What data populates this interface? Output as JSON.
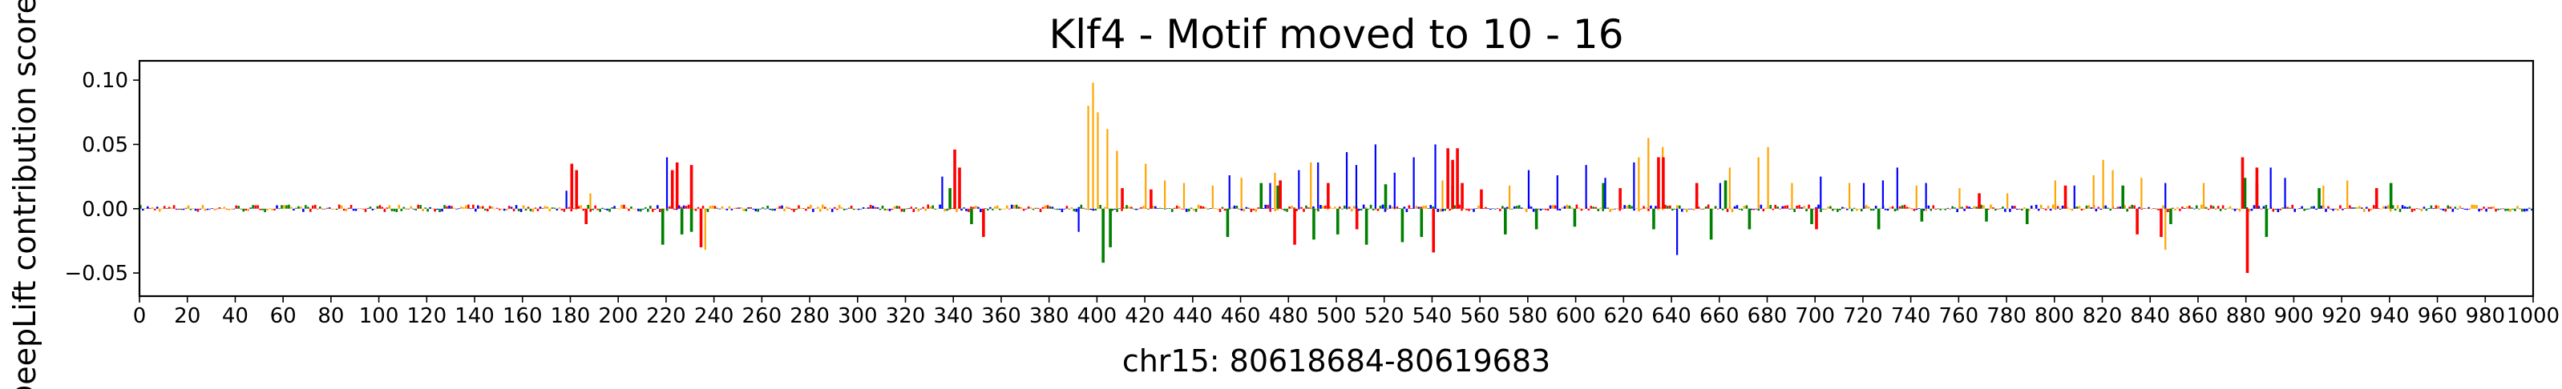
{
  "chart_data": {
    "type": "bar",
    "title": "Klf4 - Motif moved to 10 - 16",
    "xlabel": "chr15: 80618684-80619683",
    "ylabel": "DeepLift contribution score",
    "xlim": [
      0,
      1000
    ],
    "ylim": [
      -0.068,
      0.115
    ],
    "xticks": [
      0,
      20,
      40,
      60,
      80,
      100,
      120,
      140,
      160,
      180,
      200,
      220,
      240,
      260,
      280,
      300,
      320,
      340,
      360,
      380,
      400,
      420,
      440,
      460,
      480,
      500,
      520,
      540,
      560,
      580,
      600,
      620,
      640,
      660,
      680,
      700,
      720,
      740,
      760,
      780,
      800,
      820,
      840,
      860,
      880,
      900,
      920,
      940,
      960,
      980,
      1000
    ],
    "xtick_labels": [
      "0",
      "20",
      "40",
      "60",
      "80",
      "100",
      "120",
      "140",
      "160",
      "180",
      "200",
      "220",
      "240",
      "260",
      "280",
      "300",
      "320",
      "340",
      "360",
      "380",
      "400",
      "420",
      "440",
      "460",
      "480",
      "500",
      "520",
      "540",
      "560",
      "580",
      "600",
      "620",
      "640",
      "660",
      "680",
      "700",
      "720",
      "740",
      "760",
      "780",
      "800",
      "820",
      "840",
      "860",
      "880",
      "900",
      "920",
      "940",
      "960",
      "980",
      "1000"
    ],
    "yticks": [
      -0.05,
      0.0,
      0.05,
      0.1
    ],
    "ytick_labels": [
      "−0.05",
      "0.00",
      "0.05",
      "0.10"
    ],
    "grid": false,
    "legend": "none",
    "base_colors": {
      "A": "#008000",
      "C": "#0000ff",
      "G": "#ffa500",
      "T": "#ff0000"
    },
    "series": [
      {
        "base": "A",
        "x": [
          218,
          226,
          230,
          338,
          347,
          402,
          405,
          454,
          468,
          475,
          490,
          500,
          512,
          520,
          527,
          535,
          548,
          570,
          583,
          599,
          611,
          632,
          656,
          662,
          672,
          698,
          726,
          744,
          771,
          788,
          828,
          848,
          879,
          884,
          888,
          910,
          940
        ],
        "values": [
          -0.028,
          -0.02,
          -0.018,
          0.016,
          -0.012,
          -0.042,
          -0.03,
          -0.022,
          0.02,
          0.018,
          -0.024,
          -0.02,
          -0.028,
          0.019,
          -0.026,
          -0.022,
          0.018,
          -0.02,
          -0.016,
          -0.014,
          0.02,
          -0.016,
          -0.024,
          0.022,
          -0.016,
          -0.012,
          -0.016,
          -0.01,
          -0.01,
          -0.012,
          0.018,
          -0.012,
          0.024,
          0.02,
          -0.022,
          0.016,
          0.02
        ]
      },
      {
        "base": "C",
        "x": [
          178,
          220,
          335,
          392,
          455,
          472,
          484,
          492,
          504,
          508,
          516,
          524,
          532,
          541,
          580,
          592,
          604,
          612,
          624,
          642,
          660,
          702,
          720,
          728,
          734,
          746,
          808,
          846,
          890,
          896
        ],
        "values": [
          0.014,
          0.04,
          0.025,
          -0.018,
          0.026,
          0.02,
          0.03,
          0.036,
          0.044,
          0.034,
          0.05,
          0.028,
          0.04,
          0.05,
          0.03,
          0.026,
          0.034,
          0.024,
          0.036,
          -0.036,
          0.02,
          0.025,
          0.02,
          0.022,
          0.032,
          0.02,
          0.018,
          0.02,
          0.032,
          0.024
        ]
      },
      {
        "base": "G",
        "x": [
          188,
          236,
          396,
          398,
          400,
          404,
          408,
          420,
          428,
          436,
          448,
          460,
          474,
          489,
          544,
          572,
          626,
          630,
          636,
          664,
          676,
          680,
          690,
          714,
          742,
          760,
          780,
          800,
          816,
          820,
          824,
          836,
          846,
          862,
          912,
          922
        ],
        "values": [
          0.012,
          -0.032,
          0.08,
          0.098,
          0.075,
          0.062,
          0.045,
          0.035,
          0.022,
          0.02,
          0.018,
          0.024,
          0.028,
          0.036,
          0.022,
          0.018,
          0.04,
          0.055,
          0.048,
          0.032,
          0.04,
          0.048,
          0.02,
          0.02,
          0.018,
          0.016,
          0.012,
          0.022,
          0.026,
          0.038,
          0.03,
          0.024,
          -0.032,
          0.02,
          0.018,
          0.022
        ]
      },
      {
        "base": "T",
        "x": [
          180,
          182,
          186,
          222,
          224,
          230,
          234,
          340,
          342,
          352,
          410,
          422,
          476,
          482,
          496,
          508,
          540,
          546,
          548,
          550,
          552,
          560,
          618,
          634,
          636,
          650,
          700,
          768,
          804,
          834,
          844,
          878,
          880,
          884,
          934
        ],
        "values": [
          0.035,
          0.03,
          -0.012,
          0.03,
          0.036,
          0.034,
          -0.03,
          0.046,
          0.032,
          -0.022,
          0.016,
          0.015,
          0.022,
          -0.028,
          0.02,
          -0.016,
          -0.034,
          0.047,
          0.038,
          0.047,
          0.02,
          0.015,
          0.016,
          0.04,
          0.04,
          0.02,
          -0.016,
          0.012,
          0.018,
          -0.02,
          -0.022,
          0.04,
          -0.05,
          0.032,
          0.016
        ]
      }
    ]
  }
}
